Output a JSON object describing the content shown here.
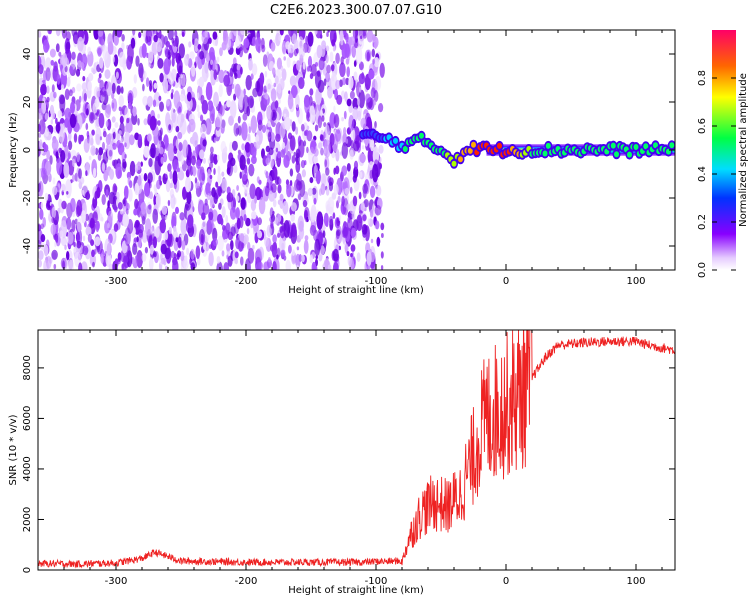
{
  "title": "C2E6.2023.300.07.07.G10",
  "colors": {
    "snr_line": "#ee2222",
    "axis": "#000000"
  },
  "chart_data": [
    {
      "type": "heatmap",
      "xlabel": "Height of straight line (km)",
      "ylabel": "Frequency (Hz)",
      "xlim": [
        -360,
        130
      ],
      "ylim": [
        -50,
        50
      ],
      "xticks": [
        -300,
        -200,
        -100,
        0,
        100
      ],
      "yticks": [
        -40,
        -20,
        0,
        20,
        40
      ],
      "noise_region_x": [
        -360,
        -95
      ],
      "signal_band": {
        "x": [
          -110,
          -95,
          -80,
          -65,
          -50,
          -40,
          -30,
          -20,
          -10,
          0,
          20,
          60,
          100,
          130
        ],
        "center_hz": [
          6,
          5,
          2,
          4,
          0,
          -4,
          0,
          1,
          0,
          0,
          0,
          0,
          0,
          0
        ],
        "peak_amplitude": [
          0.3,
          0.35,
          0.45,
          0.5,
          0.55,
          0.7,
          0.85,
          0.9,
          0.95,
          0.95,
          0.6,
          0.55,
          0.55,
          0.55
        ]
      },
      "colorbar": {
        "label": "Normalized spectral amplitude",
        "range": [
          0,
          1
        ],
        "ticks": [
          0.0,
          0.2,
          0.4,
          0.6,
          0.8
        ]
      }
    },
    {
      "type": "line",
      "xlabel": "Height of straight line (km)",
      "ylabel": "SNR (10 * v/v)",
      "xlim": [
        -360,
        130
      ],
      "ylim": [
        0,
        9500
      ],
      "xticks": [
        -300,
        -200,
        -100,
        0,
        100
      ],
      "yticks": [
        0,
        2000,
        4000,
        6000,
        8000
      ],
      "series": [
        {
          "x": [
            -360,
            -330,
            -300,
            -280,
            -270,
            -250,
            -200,
            -150,
            -110,
            -100,
            -80,
            -75,
            -65,
            -55,
            -45,
            -35,
            -30,
            -25,
            -20,
            -15,
            -10,
            -5,
            0,
            10,
            20,
            30,
            40,
            60,
            80,
            100,
            110,
            130
          ],
          "y": [
            200,
            180,
            220,
            400,
            650,
            300,
            250,
            250,
            250,
            280,
            300,
            1200,
            2300,
            2700,
            2500,
            3000,
            3800,
            4500,
            5500,
            6000,
            6200,
            6400,
            6500,
            6900,
            7600,
            8400,
            8900,
            9000,
            9050,
            9050,
            8900,
            8700
          ]
        }
      ]
    }
  ]
}
